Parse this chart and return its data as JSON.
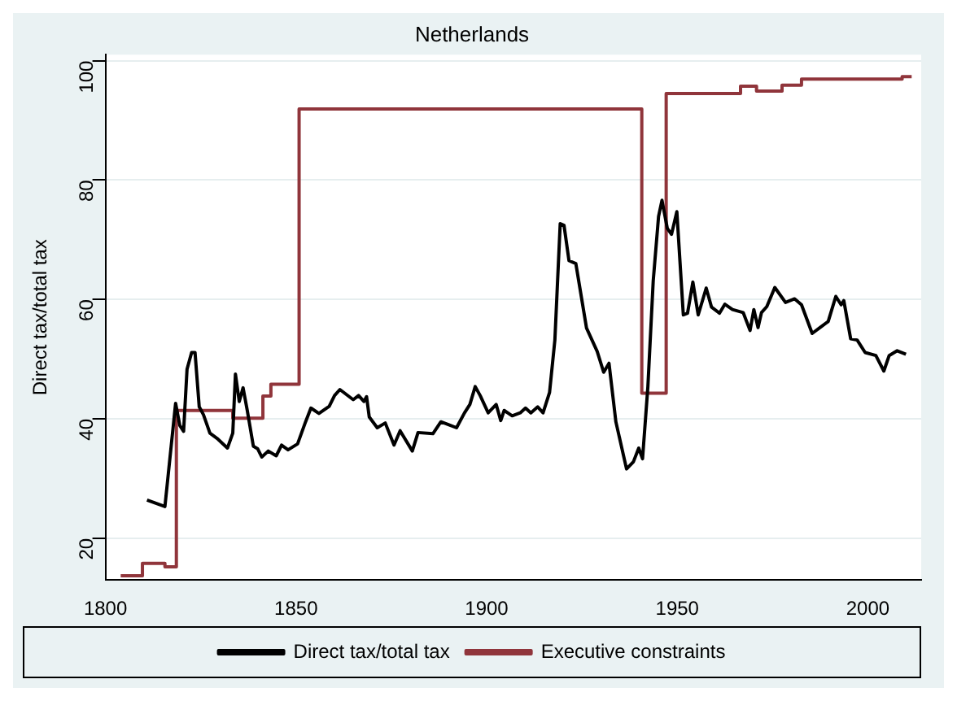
{
  "chart_data": {
    "type": "line",
    "title": "Netherlands",
    "ylabel": "Direct tax/total tax",
    "xlim": [
      1800,
      2014
    ],
    "xticks": [
      1800,
      1850,
      1900,
      1950,
      2000
    ],
    "ylim": [
      13,
      101
    ],
    "yticks": [
      20,
      40,
      60,
      80,
      100
    ],
    "grid": "y",
    "legend": "bottom",
    "marker": "none",
    "line_style": "solid",
    "series": [
      {
        "name": "Direct tax/total tax",
        "color": "#000000",
        "x": [
          1810.9,
          1815.6,
          1818.4,
          1819.5,
          1820.5,
          1821.4,
          1822.6,
          1823.5,
          1824.6,
          1825.7,
          1827.4,
          1829.5,
          1832,
          1833.4,
          1834.1,
          1835.1,
          1836.1,
          1837.2,
          1838.8,
          1839.9,
          1841,
          1842.7,
          1844.8,
          1846.2,
          1847.9,
          1850.4,
          1852.5,
          1853.9,
          1856,
          1858.7,
          1860.1,
          1861.5,
          1865,
          1866.4,
          1867.8,
          1868.5,
          1869.2,
          1871.3,
          1873.4,
          1875.7,
          1877.3,
          1880.5,
          1882,
          1885.9,
          1888,
          1890.1,
          1892.1,
          1894.2,
          1895.6,
          1897,
          1898.3,
          1900.4,
          1902.5,
          1903.7,
          1904.6,
          1906.7,
          1908.8,
          1910.2,
          1911.6,
          1913.4,
          1914.8,
          1916.5,
          1917.9,
          1919.3,
          1920.3,
          1921.6,
          1923.4,
          1926.2,
          1929,
          1930.7,
          1932.1,
          1933.9,
          1936.7,
          1938.5,
          1939.9,
          1940.9,
          1942.3,
          1943.7,
          1945.1,
          1946,
          1947.4,
          1948.5,
          1949.9,
          1951.6,
          1952.7,
          1954.1,
          1955.5,
          1957.6,
          1959,
          1961.1,
          1962.5,
          1964.5,
          1967.3,
          1969.1,
          1970.1,
          1971.2,
          1972.1,
          1973.5,
          1975.6,
          1978.4,
          1980.8,
          1982.6,
          1985.4,
          1987.5,
          1989.6,
          1991.6,
          1993,
          1993.7,
          1995.5,
          1997.2,
          1999.3,
          2002.1,
          2004.2,
          2005.6,
          2007.7,
          2010
        ],
        "values": [
          26.4,
          25.3,
          42.6,
          38.9,
          37.9,
          48.3,
          51.1,
          51.1,
          42,
          40.7,
          37.6,
          36.6,
          35.1,
          37.6,
          47.5,
          42.9,
          45.2,
          41.4,
          35.4,
          35,
          33.6,
          34.6,
          33.8,
          35.6,
          34.8,
          35.8,
          39.5,
          41.8,
          40.9,
          42.1,
          43.9,
          44.9,
          43.2,
          43.9,
          42.9,
          43.7,
          40.3,
          38.5,
          39.3,
          35.6,
          38,
          34.6,
          37.7,
          37.5,
          39.5,
          39,
          38.5,
          41,
          42.4,
          45.4,
          43.9,
          41,
          42.4,
          39.7,
          41.4,
          40.5,
          41,
          41.8,
          41,
          42,
          41,
          44.4,
          53.2,
          72.7,
          72.4,
          66.5,
          66,
          55.2,
          51.3,
          47.8,
          49.3,
          39.5,
          31.6,
          32.8,
          35.1,
          33.3,
          45.4,
          63.1,
          73.9,
          76.6,
          71.9,
          70.9,
          74.7,
          57.4,
          57.7,
          62.9,
          57.4,
          61.9,
          58.7,
          57.7,
          59.2,
          58.3,
          57.8,
          54.8,
          58.3,
          55.3,
          57.8,
          58.8,
          62,
          59.5,
          60.1,
          59.1,
          54.3,
          55.3,
          56.3,
          60.5,
          59.1,
          59.8,
          53.4,
          53.2,
          51.1,
          50.6,
          48,
          50.6,
          51.4,
          50.8
        ]
      },
      {
        "name": "Executive constraints",
        "color": "#90353b",
        "type": "step",
        "x": [
          1804,
          1809.7,
          1815.6,
          1818.6,
          1833.4,
          1841.3,
          1843.4,
          1850.8,
          1940.7,
          1947.1,
          1966.6,
          1970.8,
          1977.5,
          1982.6,
          2009,
          2011.5
        ],
        "values": [
          13.7,
          15.8,
          15.2,
          41.4,
          40.1,
          43.8,
          45.8,
          91.9,
          44.3,
          94.5,
          95.7,
          94.9,
          95.9,
          96.9,
          97.3,
          97.3
        ]
      }
    ]
  }
}
